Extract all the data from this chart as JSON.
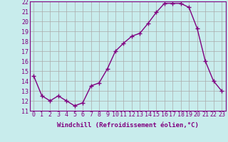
{
  "x": [
    0,
    1,
    2,
    3,
    4,
    5,
    6,
    7,
    8,
    9,
    10,
    11,
    12,
    13,
    14,
    15,
    16,
    17,
    18,
    19,
    20,
    21,
    22,
    23
  ],
  "y": [
    14.5,
    12.5,
    12.0,
    12.5,
    12.0,
    11.5,
    11.8,
    13.5,
    13.8,
    15.2,
    17.0,
    17.8,
    18.5,
    18.8,
    19.8,
    20.9,
    21.8,
    21.8,
    21.8,
    21.4,
    19.3,
    16.0,
    14.0,
    13.0
  ],
  "line_color": "#800080",
  "marker": "+",
  "marker_size": 4,
  "bg_color": "#c8ecec",
  "grid_color": "#aaaaaa",
  "xlabel": "Windchill (Refroidissement éolien,°C)",
  "xlabel_fontsize": 6.5,
  "tick_fontsize": 6.0,
  "ylim": [
    11,
    22
  ],
  "yticks": [
    11,
    12,
    13,
    14,
    15,
    16,
    17,
    18,
    19,
    20,
    21,
    22
  ],
  "xticks": [
    0,
    1,
    2,
    3,
    4,
    5,
    6,
    7,
    8,
    9,
    10,
    11,
    12,
    13,
    14,
    15,
    16,
    17,
    18,
    19,
    20,
    21,
    22,
    23
  ],
  "line_width": 1.0,
  "spine_color": "#800080",
  "text_color": "#800080"
}
